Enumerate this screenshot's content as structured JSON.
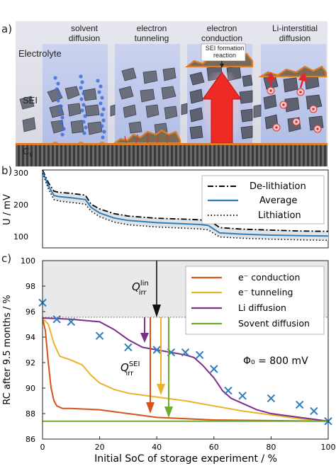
{
  "caption_fragment": "panel (a), (b), (c)",
  "panel_a": {
    "label": "a)",
    "columns": [
      "solvent\ndiffusion",
      "electron\ntunneling",
      "electron\nconduction",
      "Li-interstitial\ndiffusion"
    ],
    "columns_l1": [
      "solvent",
      "electron",
      "electron",
      "Li-interstitial"
    ],
    "columns_l2": [
      "diffusion",
      "tunneling",
      "conduction",
      "diffusion"
    ],
    "electrolyte_label": "Electrolyte",
    "sei_label": "SEI",
    "c6_label": "C",
    "c6_sub": "6",
    "reaction_label_l1": "SEI formation",
    "reaction_label_l2": "reaction"
  },
  "panel_b": {
    "label": "b)",
    "ylabel": "U / mV",
    "yticks": [
      "300",
      "200",
      "100"
    ],
    "legend": [
      "De-lithiation",
      "Average",
      "Lithiation"
    ]
  },
  "panel_c": {
    "label": "c)",
    "ylabel": "RC after 9.5 months / %",
    "xlabel": "Initial SoC of storage experiment / %",
    "yticks": [
      "100",
      "98",
      "96",
      "94",
      "92",
      "90",
      "88",
      "86"
    ],
    "xticks": [
      "0",
      "20",
      "40",
      "60",
      "80",
      "100"
    ],
    "legend": [
      "e⁻ conduction",
      "e⁻ tunneling",
      "Li diffusion",
      "Sovent diffusion"
    ],
    "q_lin": "Q",
    "q_lin_sup": "lin",
    "q_lin_sub": "irr",
    "q_sei": "Q",
    "q_sei_sup": "SEI",
    "q_sei_sub": "irr",
    "phi": "Φ₀ = 800 mV"
  },
  "colors": {
    "conduction": "#d6541c",
    "tunneling": "#eab32a",
    "li_diffusion": "#7d2f8e",
    "solvent": "#6fad2e",
    "average": "#2a7fc1",
    "markers": "#2a7fc1"
  },
  "chart_data": [
    {
      "type": "line",
      "ylabel": "U / mV",
      "ylim": [
        50,
        300
      ],
      "legend_position": "top-right",
      "series": [
        {
          "name": "De-lithiation",
          "x": [
            0,
            2,
            4,
            6,
            10,
            15,
            17,
            20,
            25,
            30,
            40,
            50,
            55,
            58,
            60,
            62,
            70,
            80,
            90,
            100
          ],
          "y": [
            300,
            260,
            232,
            228,
            225,
            219,
            190,
            175,
            160,
            152,
            145,
            142,
            140,
            137,
            128,
            115,
            110,
            107,
            104,
            103
          ]
        },
        {
          "name": "Average",
          "x": [
            0,
            2,
            4,
            6,
            10,
            15,
            17,
            20,
            25,
            30,
            40,
            50,
            55,
            58,
            60,
            62,
            70,
            80,
            90,
            100
          ],
          "y": [
            295,
            250,
            218,
            214,
            211,
            205,
            180,
            162,
            146,
            138,
            131,
            127,
            125,
            122,
            110,
            98,
            94,
            91,
            89,
            88
          ]
        },
        {
          "name": "Lithiation",
          "x": [
            0,
            2,
            4,
            6,
            10,
            15,
            17,
            20,
            25,
            30,
            40,
            50,
            55,
            58,
            60,
            62,
            70,
            80,
            90,
            100
          ],
          "y": [
            290,
            240,
            205,
            200,
            196,
            190,
            168,
            150,
            133,
            124,
            117,
            113,
            111,
            108,
            96,
            85,
            81,
            78,
            76,
            74
          ]
        }
      ]
    },
    {
      "type": "line",
      "xlabel": "Initial SoC of storage experiment / %",
      "ylabel": "RC after 9.5 months / %",
      "xlim": [
        0,
        100
      ],
      "ylim": [
        86,
        100
      ],
      "legend_position": "top-right",
      "series": [
        {
          "name": "e⁻ conduction",
          "x": [
            0,
            1,
            2,
            3,
            4,
            5,
            7,
            10,
            20,
            40,
            60,
            80,
            100
          ],
          "y": [
            95.5,
            94.5,
            92.0,
            90.0,
            89.0,
            88.6,
            88.4,
            88.4,
            88.3,
            87.7,
            87.5,
            87.45,
            87.4
          ]
        },
        {
          "name": "e⁻ tunneling",
          "x": [
            0,
            2,
            4,
            6,
            10,
            14,
            17,
            20,
            25,
            30,
            40,
            50,
            60,
            70,
            80,
            90,
            100
          ],
          "y": [
            95.5,
            95.0,
            93.5,
            92.5,
            92.2,
            91.8,
            91.0,
            90.4,
            89.9,
            89.6,
            89.3,
            89.0,
            88.6,
            88.2,
            87.9,
            87.6,
            87.4
          ]
        },
        {
          "name": "Li diffusion",
          "x": [
            0,
            10,
            20,
            25,
            30,
            35,
            40,
            45,
            50,
            53,
            56,
            60,
            63,
            66,
            70,
            75,
            80,
            90,
            100
          ],
          "y": [
            95.5,
            95.4,
            95.2,
            94.6,
            93.8,
            93.2,
            93.0,
            92.8,
            92.6,
            92.4,
            91.8,
            90.8,
            89.8,
            89.2,
            88.8,
            88.3,
            88.0,
            87.7,
            87.4
          ]
        },
        {
          "name": "Sovent diffusion",
          "x": [
            0,
            100
          ],
          "y": [
            87.4,
            87.4
          ]
        },
        {
          "name": "",
          "type": "scatter",
          "x": [
            0,
            5,
            10,
            20,
            30,
            40,
            45,
            50,
            55,
            60,
            65,
            70,
            80,
            90,
            95,
            100
          ],
          "y": [
            96.7,
            95.4,
            95.2,
            94.1,
            93.2,
            93.0,
            92.8,
            92.8,
            92.6,
            91.5,
            89.8,
            89.4,
            89.2,
            88.7,
            88.2,
            87.4
          ]
        }
      ]
    }
  ]
}
